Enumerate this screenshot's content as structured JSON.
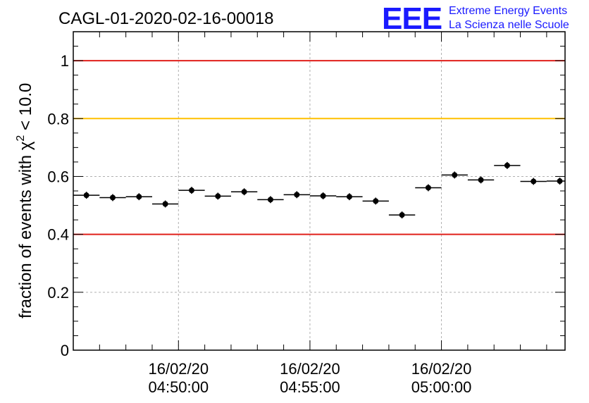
{
  "chart_data": {
    "type": "scatter",
    "title": "CAGL-01-2020-02-16-00018",
    "ylabel_main": "fraction of events with χ",
    "ylabel_sup": "2",
    "ylabel_tail": " < 10.0",
    "xlabel": "",
    "ylim": [
      0,
      1.1
    ],
    "yticks": [
      "0",
      "0.2",
      "0.4",
      "0.6",
      "0.8",
      "1"
    ],
    "ytick_values": [
      0,
      0.2,
      0.4,
      0.6,
      0.8,
      1.0
    ],
    "xticks": [
      {
        "date": "16/02/20",
        "time": "04:50:00"
      },
      {
        "date": "16/02/20",
        "time": "04:55:00"
      },
      {
        "date": "16/02/20",
        "time": "05:00:00"
      }
    ],
    "xtick_minutes": [
      50,
      55,
      60
    ],
    "xlim_minutes": [
      46,
      64.7
    ],
    "bin_width_minutes": 1,
    "x_minutes": [
      46.5,
      47.5,
      48.5,
      49.5,
      50.5,
      51.5,
      52.5,
      53.5,
      54.5,
      55.5,
      56.5,
      57.5,
      58.5,
      59.5,
      60.5,
      61.5,
      62.5,
      63.5,
      64.5
    ],
    "values": [
      0.535,
      0.527,
      0.53,
      0.505,
      0.552,
      0.532,
      0.547,
      0.52,
      0.537,
      0.533,
      0.53,
      0.515,
      0.467,
      0.561,
      0.605,
      0.588,
      0.638,
      0.583,
      0.584
    ],
    "errors": [
      0.012,
      0.012,
      0.012,
      0.012,
      0.012,
      0.012,
      0.012,
      0.012,
      0.012,
      0.012,
      0.012,
      0.012,
      0.012,
      0.012,
      0.012,
      0.012,
      0.012,
      0.012,
      0.012
    ],
    "reference_lines": [
      {
        "value": 1.0,
        "color": "#e0201b"
      },
      {
        "value": 0.8,
        "color": "#ffc000"
      },
      {
        "value": 0.4,
        "color": "#e0201b"
      }
    ],
    "grid": true,
    "logo": {
      "mark": "EEE",
      "line1": "Extreme Energy Events",
      "line2": "La Scienza nelle Scuole",
      "color": "#1a1aff"
    }
  }
}
